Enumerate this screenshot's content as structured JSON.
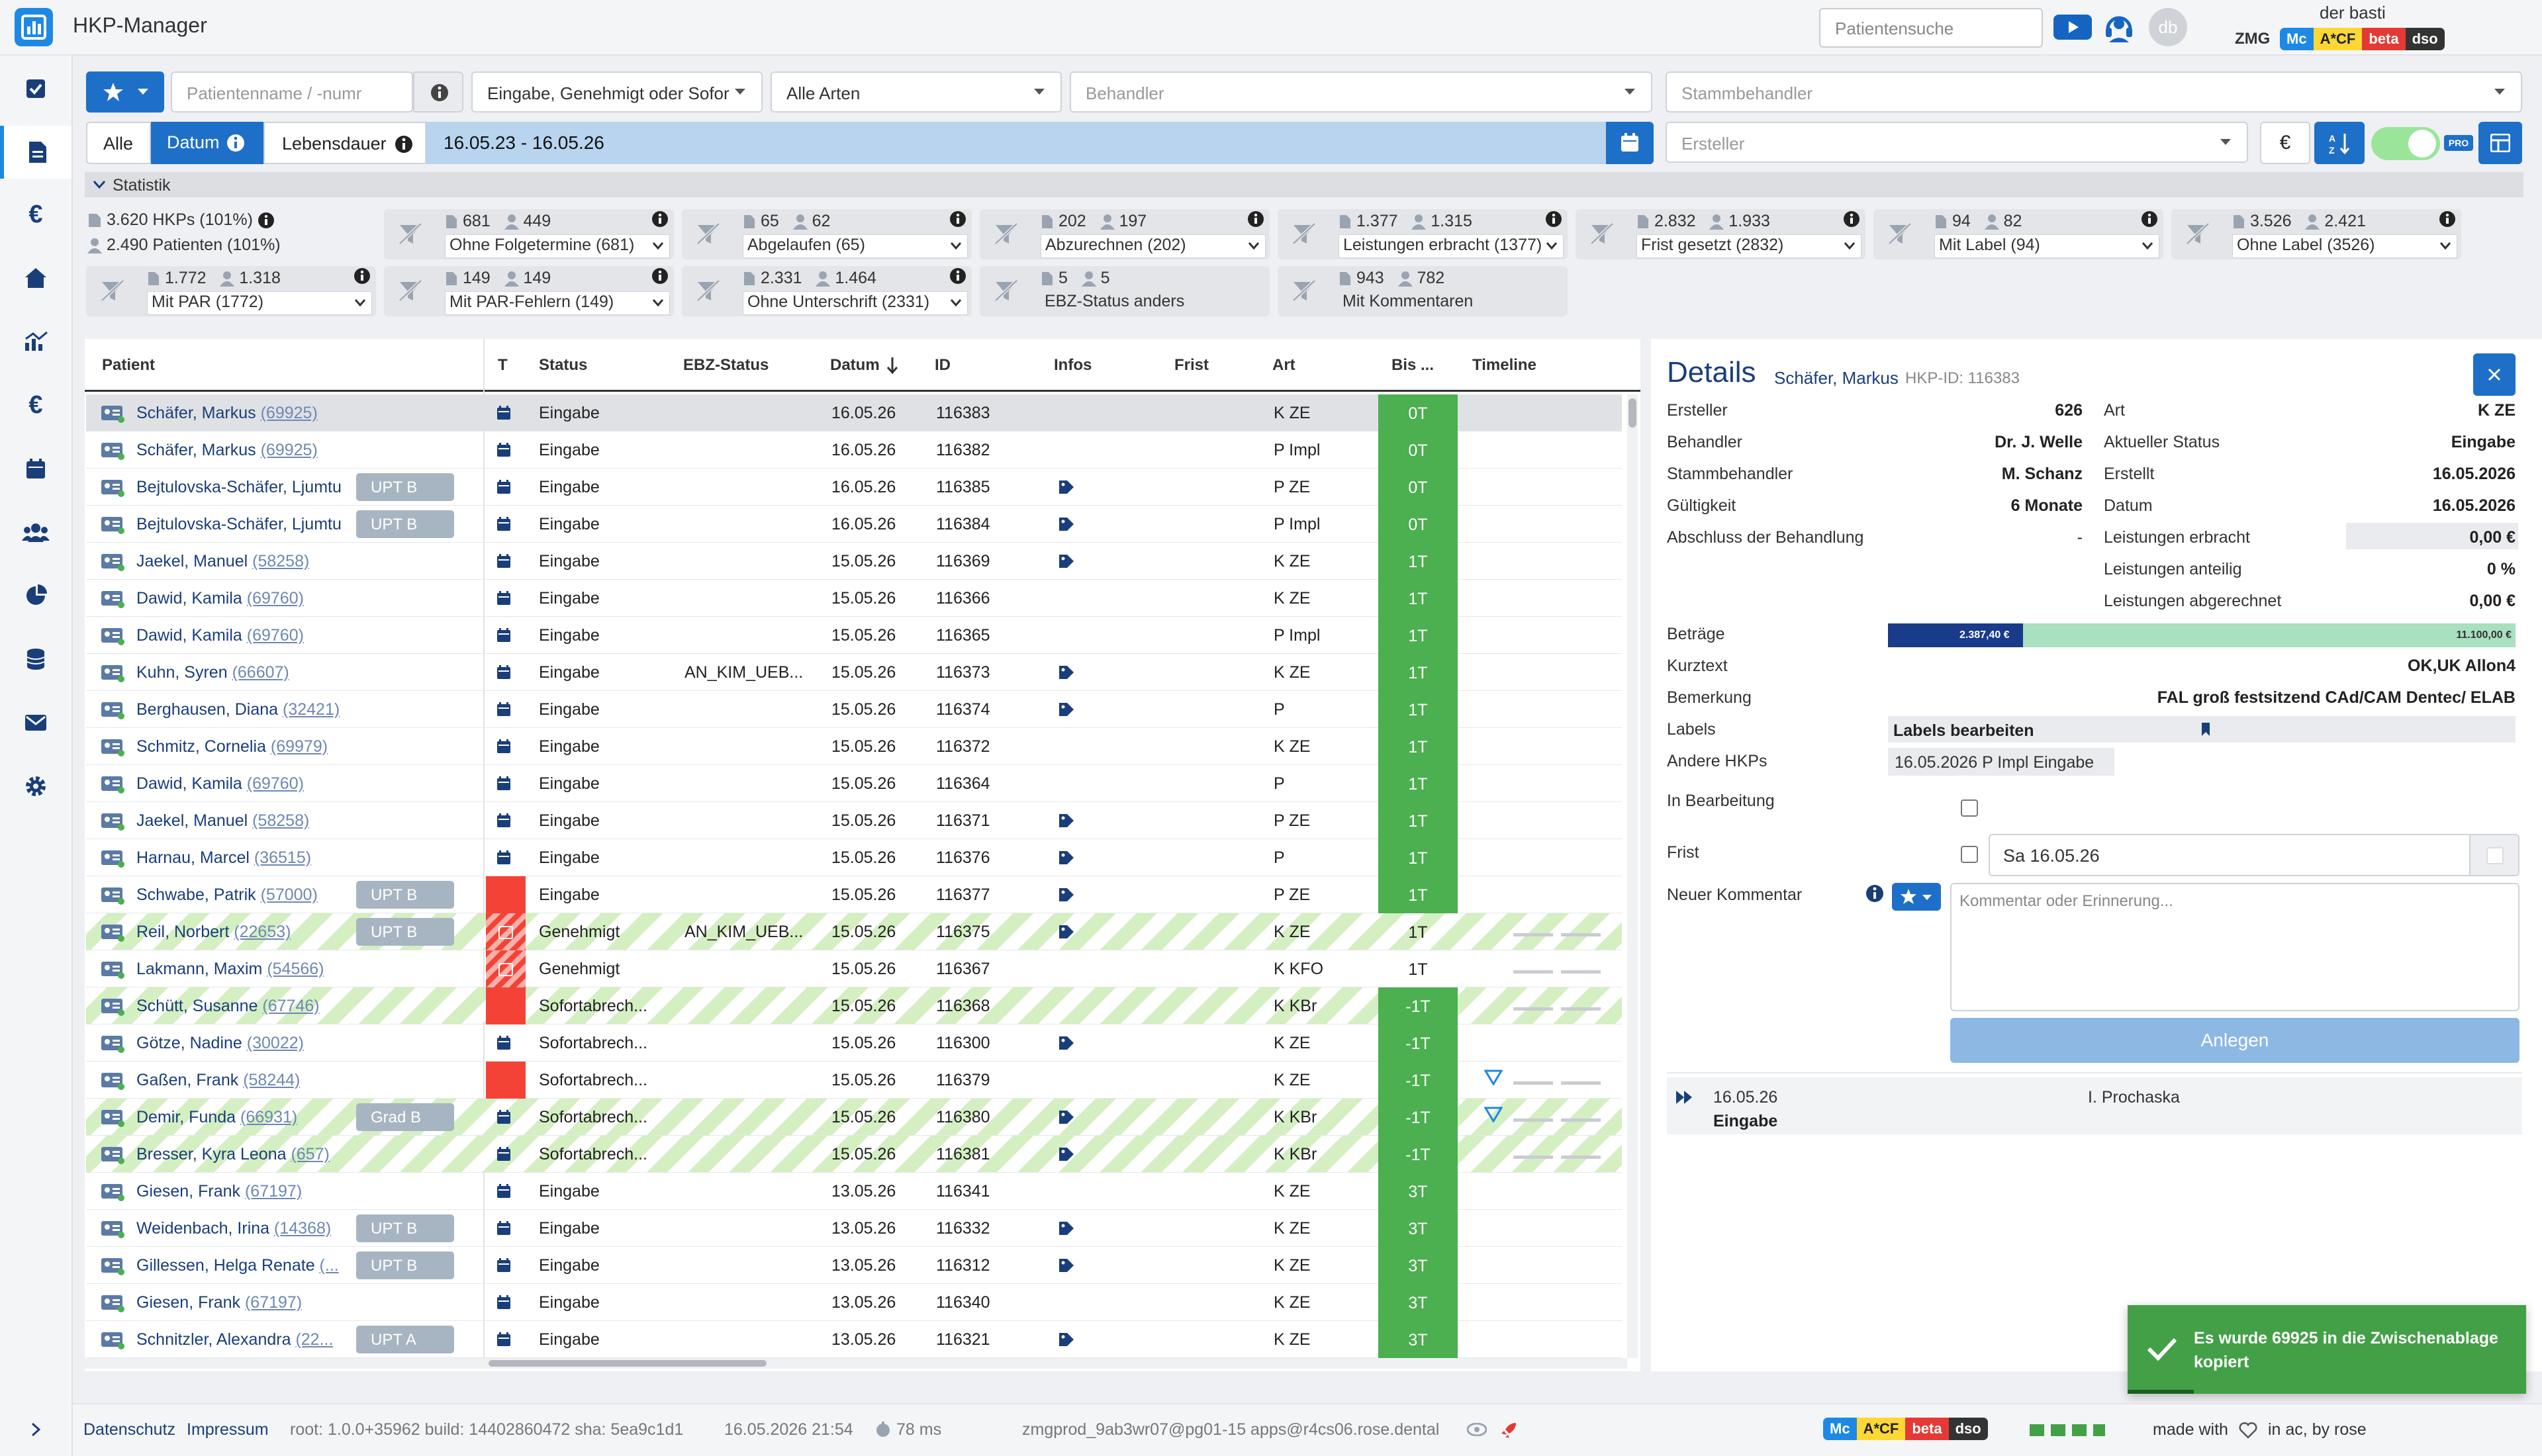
{
  "app": {
    "title": "HKP-Manager"
  },
  "header": {
    "patient_search_placeholder": "Patientensuche",
    "avatar_initials": "db",
    "username": "der basti",
    "org": "ZMG",
    "env_tags": [
      "Mc",
      "A*CF",
      "beta",
      "dso"
    ]
  },
  "filters": {
    "patient_placeholder": "Patientenname / -numr",
    "status_select": "Eingabe, Genehmigt oder Sofor",
    "art_select": "Alle Arten",
    "behandler_placeholder": "Behandler",
    "stammbehandler_placeholder": "Stammbehandler",
    "date_tabs": [
      "Alle",
      "Datum",
      "Lebensdauer"
    ],
    "date_range": "16.05.23 - 16.05.26",
    "ersteller_placeholder": "Ersteller",
    "currency_button": "€",
    "pro_badge": "PRO"
  },
  "stats": {
    "section_label": "Statistik",
    "summary_hkps": "3.620 HKPs (101%)",
    "summary_patients": "2.490 Patienten (101%)",
    "boxes": [
      {
        "c1": "681",
        "c2": "449",
        "label": "Ohne Folgetermine (681)"
      },
      {
        "c1": "65",
        "c2": "62",
        "label": "Abgelaufen (65)"
      },
      {
        "c1": "202",
        "c2": "197",
        "label": "Abzurechnen (202)"
      },
      {
        "c1": "1.377",
        "c2": "1.315",
        "label": "Leistungen erbracht (1377)"
      },
      {
        "c1": "2.832",
        "c2": "1.933",
        "label": "Frist gesetzt (2832)"
      },
      {
        "c1": "94",
        "c2": "82",
        "label": "Mit Label (94)"
      },
      {
        "c1": "3.526",
        "c2": "2.421",
        "label": "Ohne Label (3526)"
      },
      {
        "c1": "1.772",
        "c2": "1.318",
        "label": "Mit PAR (1772)"
      },
      {
        "c1": "149",
        "c2": "149",
        "label": "Mit PAR-Fehlern (149)"
      },
      {
        "c1": "2.331",
        "c2": "1.464",
        "label": "Ohne Unterschrift (2331)"
      },
      {
        "c1": "5",
        "c2": "5",
        "label": "EBZ-Status anders"
      },
      {
        "c1": "943",
        "c2": "782",
        "label": "Mit Kommentaren"
      }
    ]
  },
  "table": {
    "headers": [
      "Patient",
      "T",
      "Status",
      "EBZ-Status",
      "Datum",
      "ID",
      "Infos",
      "Frist",
      "Art",
      "Bis ...",
      "Timeline"
    ],
    "rows": [
      {
        "surname": "Schäfer,",
        "first": " Markus",
        "pid": "(69925)",
        "badge": "",
        "status": "Eingabe",
        "ebz": "",
        "date": "16.05.26",
        "id": "116383",
        "info": false,
        "art": "K ZE",
        "bis": "0T",
        "t": "cal",
        "stripe": false,
        "sel": true
      },
      {
        "surname": "Schäfer,",
        "first": " Markus",
        "pid": "(69925)",
        "badge": "",
        "status": "Eingabe",
        "ebz": "",
        "date": "16.05.26",
        "id": "116382",
        "info": false,
        "art": "P Impl",
        "bis": "0T",
        "t": "cal",
        "stripe": false
      },
      {
        "surname": "Bejtulovska-Schäfer,",
        "first": " Ljumtu",
        "pid": "",
        "badge": "UPT B",
        "status": "Eingabe",
        "ebz": "",
        "date": "16.05.26",
        "id": "116385",
        "info": true,
        "art": "P ZE",
        "bis": "0T",
        "t": "cal",
        "stripe": false
      },
      {
        "surname": "Bejtulovska-Schäfer,",
        "first": " Ljumtu",
        "pid": "",
        "badge": "UPT B",
        "status": "Eingabe",
        "ebz": "",
        "date": "16.05.26",
        "id": "116384",
        "info": true,
        "art": "P Impl",
        "bis": "0T",
        "t": "cal",
        "stripe": false
      },
      {
        "surname": "Jaekel,",
        "first": " Manuel",
        "pid": "(58258)",
        "badge": "",
        "status": "Eingabe",
        "ebz": "",
        "date": "15.05.26",
        "id": "116369",
        "info": true,
        "art": "K ZE",
        "bis": "1T",
        "t": "cal",
        "stripe": false
      },
      {
        "surname": "Dawid,",
        "first": " Kamila",
        "pid": "(69760)",
        "badge": "",
        "status": "Eingabe",
        "ebz": "",
        "date": "15.05.26",
        "id": "116366",
        "info": false,
        "art": "K ZE",
        "bis": "1T",
        "t": "cal",
        "stripe": false
      },
      {
        "surname": "Dawid,",
        "first": " Kamila",
        "pid": "(69760)",
        "badge": "",
        "status": "Eingabe",
        "ebz": "",
        "date": "15.05.26",
        "id": "116365",
        "info": false,
        "art": "P Impl",
        "bis": "1T",
        "t": "cal",
        "stripe": false
      },
      {
        "surname": "Kuhn,",
        "first": " Syren",
        "pid": "(66607)",
        "badge": "",
        "status": "Eingabe",
        "ebz": "AN_KIM_UEB...",
        "date": "15.05.26",
        "id": "116373",
        "info": true,
        "art": "K ZE",
        "bis": "1T",
        "t": "cal",
        "stripe": false
      },
      {
        "surname": "Berghausen,",
        "first": " Diana",
        "pid": "(32421)",
        "badge": "",
        "status": "Eingabe",
        "ebz": "",
        "date": "15.05.26",
        "id": "116374",
        "info": true,
        "art": "P",
        "bis": "1T",
        "t": "cal",
        "stripe": false
      },
      {
        "surname": "Schmitz,",
        "first": " Cornelia",
        "pid": "(69979)",
        "badge": "",
        "status": "Eingabe",
        "ebz": "",
        "date": "15.05.26",
        "id": "116372",
        "info": false,
        "art": "K ZE",
        "bis": "1T",
        "t": "cal",
        "stripe": false
      },
      {
        "surname": "Dawid,",
        "first": " Kamila",
        "pid": "(69760)",
        "badge": "",
        "status": "Eingabe",
        "ebz": "",
        "date": "15.05.26",
        "id": "116364",
        "info": false,
        "art": "P",
        "bis": "1T",
        "t": "cal",
        "stripe": false
      },
      {
        "surname": "Jaekel,",
        "first": " Manuel",
        "pid": "(58258)",
        "badge": "",
        "status": "Eingabe",
        "ebz": "",
        "date": "15.05.26",
        "id": "116371",
        "info": true,
        "art": "P ZE",
        "bis": "1T",
        "t": "cal",
        "stripe": false
      },
      {
        "surname": "Harnau,",
        "first": " Marcel",
        "pid": "(36515)",
        "badge": "",
        "status": "Eingabe",
        "ebz": "",
        "date": "15.05.26",
        "id": "116376",
        "info": true,
        "art": "P",
        "bis": "1T",
        "t": "cal",
        "stripe": false
      },
      {
        "surname": "Schwabe,",
        "first": " Patrik",
        "pid": "(57000)",
        "badge": "UPT B",
        "status": "Eingabe",
        "ebz": "",
        "date": "15.05.26",
        "id": "116377",
        "info": true,
        "art": "P ZE",
        "bis": "1T",
        "t": "red",
        "stripe": false
      },
      {
        "surname": "Reil,",
        "first": " Norbert",
        "pid": "(22653)",
        "badge": "UPT B",
        "status": "Genehmigt",
        "ebz": "AN_KIM_UEB...",
        "date": "15.05.26",
        "id": "116375",
        "info": true,
        "art": "K ZE",
        "bis": "1T",
        "t": "redstripe",
        "stripe": true,
        "bisw": true
      },
      {
        "surname": "Lakmann,",
        "first": " Maxim",
        "pid": "(54566)",
        "badge": "",
        "status": "Genehmigt",
        "ebz": "",
        "date": "15.05.26",
        "id": "116367",
        "info": false,
        "art": "K KFO",
        "bis": "1T",
        "t": "redstripe",
        "stripe": false,
        "bisw": true
      },
      {
        "surname": "Schütt,",
        "first": " Susanne",
        "pid": "(67746)",
        "badge": "",
        "status": "Sofortabrech...",
        "ebz": "",
        "date": "15.05.26",
        "id": "116368",
        "info": false,
        "art": "K KBr",
        "bis": "-1T",
        "t": "red",
        "stripe": true
      },
      {
        "surname": "Götze,",
        "first": " Nadine",
        "pid": "(30022)",
        "badge": "",
        "status": "Sofortabrech...",
        "ebz": "",
        "date": "15.05.26",
        "id": "116300",
        "info": true,
        "art": "K ZE",
        "bis": "-1T",
        "t": "cal",
        "stripe": false
      },
      {
        "surname": "Gaßen,",
        "first": " Frank",
        "pid": "(58244)",
        "badge": "",
        "status": "Sofortabrech...",
        "ebz": "",
        "date": "15.05.26",
        "id": "116379",
        "info": false,
        "art": "K ZE",
        "bis": "-1T",
        "t": "red",
        "stripe": false,
        "tri": true
      },
      {
        "surname": "Demir,",
        "first": " Funda",
        "pid": "(66931)",
        "badge": "Grad B",
        "status": "Sofortabrech...",
        "ebz": "",
        "date": "15.05.26",
        "id": "116380",
        "info": true,
        "art": "K KBr",
        "bis": "-1T",
        "t": "cal",
        "stripe": true,
        "tri": true
      },
      {
        "surname": "Bresser,",
        "first": " Kyra Leona",
        "pid": "(657)",
        "badge": "",
        "status": "Sofortabrech...",
        "ebz": "",
        "date": "15.05.26",
        "id": "116381",
        "info": true,
        "art": "K KBr",
        "bis": "-1T",
        "t": "cal",
        "stripe": true
      },
      {
        "surname": "Giesen,",
        "first": " Frank",
        "pid": "(67197)",
        "badge": "",
        "status": "Eingabe",
        "ebz": "",
        "date": "13.05.26",
        "id": "116341",
        "info": false,
        "art": "K ZE",
        "bis": "3T",
        "t": "cal",
        "stripe": false
      },
      {
        "surname": "Weidenbach,",
        "first": " Irina",
        "pid": "(14368)",
        "badge": "UPT B",
        "status": "Eingabe",
        "ebz": "",
        "date": "13.05.26",
        "id": "116332",
        "info": true,
        "art": "K ZE",
        "bis": "3T",
        "t": "cal",
        "stripe": false
      },
      {
        "surname": "Gillessen,",
        "first": " Helga Renate",
        "pid": "(...",
        "badge": "UPT B",
        "status": "Eingabe",
        "ebz": "",
        "date": "13.05.26",
        "id": "116312",
        "info": true,
        "art": "K ZE",
        "bis": "3T",
        "t": "cal",
        "stripe": false
      },
      {
        "surname": "Giesen,",
        "first": " Frank",
        "pid": "(67197)",
        "badge": "",
        "status": "Eingabe",
        "ebz": "",
        "date": "13.05.26",
        "id": "116340",
        "info": false,
        "art": "K ZE",
        "bis": "3T",
        "t": "cal",
        "stripe": false
      },
      {
        "surname": "Schnitzler,",
        "first": " Alexandra",
        "pid": "(22...",
        "badge": "UPT A",
        "status": "Eingabe",
        "ebz": "",
        "date": "13.05.26",
        "id": "116321",
        "info": true,
        "art": "K ZE",
        "bis": "3T",
        "t": "cal",
        "stripe": false
      }
    ]
  },
  "details": {
    "title": "Details",
    "patient": "Schäfer, Markus",
    "hkp_id": "HKP-ID: 116383",
    "ersteller_label": "Ersteller",
    "ersteller": "626",
    "behandler_label": "Behandler",
    "behandler": "Dr. J. Welle",
    "stammbehandler_label": "Stammbehandler",
    "stammbehandler": "M. Schanz",
    "gueltigkeit_label": "Gültigkeit",
    "gueltigkeit": "6 Monate",
    "abschluss_label": "Abschluss der Behandlung",
    "abschluss": "-",
    "art_label": "Art",
    "art": "K ZE",
    "akt_status_label": "Aktueller Status",
    "akt_status": "Eingabe",
    "erstellt_label": "Erstellt",
    "erstellt": "16.05.2026",
    "datum_label": "Datum",
    "datum": "16.05.2026",
    "leist_erbracht_label": "Leistungen erbracht",
    "leist_erbracht": "0,00 €",
    "leist_anteilig_label": "Leistungen anteilig",
    "leist_anteilig": "0 %",
    "leist_abgerechnet_label": "Leistungen abgerechnet",
    "leist_abgerechnet": "0,00 €",
    "betraege_label": "Beträge",
    "betrag_a": "2.387,40 €",
    "betrag_b": "11.100,00 €",
    "betrag_fraction": 0.215,
    "kurztext_label": "Kurztext",
    "kurztext": "OK,UK Allon4",
    "bemerkung_label": "Bemerkung",
    "bemerkung": "FAL groß festsitzend CAd/CAM Dentec/ ELAB",
    "labels_label": "Labels",
    "labels_button": "Labels bearbeiten",
    "andere_label": "Andere HKPs",
    "andere": "16.05.2026 P Impl Eingabe",
    "in_bearbeitung_label": "In Bearbeitung",
    "frist_label": "Frist",
    "frist_value": "Sa 16.05.26",
    "kommentar_label": "Neuer Kommentar",
    "kommentar_placeholder": "Kommentar oder Erinnerung...",
    "anlegen": "Anlegen",
    "timeline_date": "16.05.26",
    "timeline_status": "Eingabe",
    "timeline_user": "I. Prochaska"
  },
  "toast": {
    "text": "Es wurde 69925 in die Zwischenablage kopiert"
  },
  "footer": {
    "datenschutz": "Datenschutz",
    "impressum": "Impressum",
    "version": "root: 1.0.0+35962  build: 14402860472  sha: 5ea9c1d1",
    "timestamp": "16.05.2026 21:54",
    "latency": "78 ms",
    "server": "zmgprod_9ab3wr07@pg01-15  apps@r4cs06.rose.dental",
    "made_with": "made with",
    "made_in": "in ac, by rose"
  },
  "colors": {
    "primary": "#1e6fc8",
    "green": "#4caf50",
    "red": "#f44336",
    "stripe": "#c8ecb4",
    "toast": "#43a047"
  }
}
